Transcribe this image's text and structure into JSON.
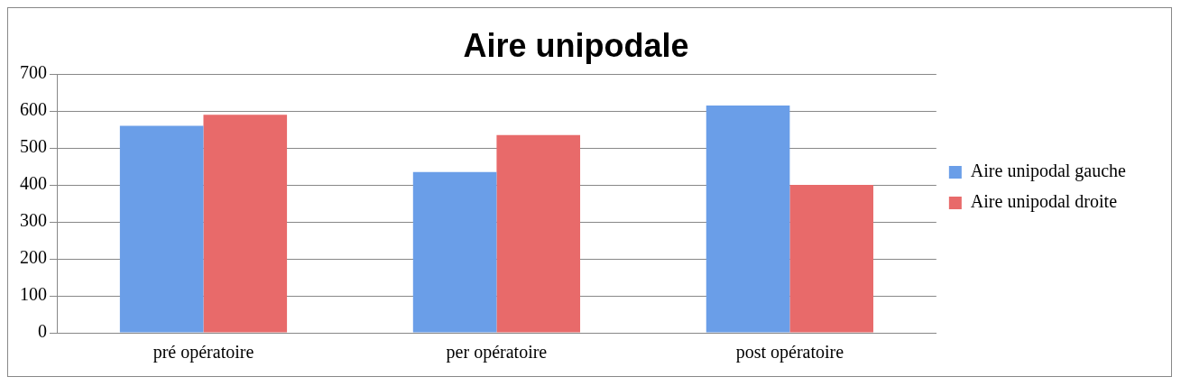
{
  "chart_data": {
    "type": "bar",
    "title": "Aire unipodale",
    "categories": [
      "pré opératoire",
      "per opératoire",
      "post opératoire"
    ],
    "series": [
      {
        "name": "Aire unipodal gauche",
        "color": "#6a9ee8",
        "values": [
          560,
          435,
          615
        ]
      },
      {
        "name": "Aire unipodal droite",
        "color": "#e86a6a",
        "values": [
          590,
          535,
          400
        ]
      }
    ],
    "ylim": [
      0,
      700
    ],
    "yticks": [
      0,
      100,
      200,
      300,
      400,
      500,
      600,
      700
    ],
    "grid": "y",
    "legend": "right"
  }
}
